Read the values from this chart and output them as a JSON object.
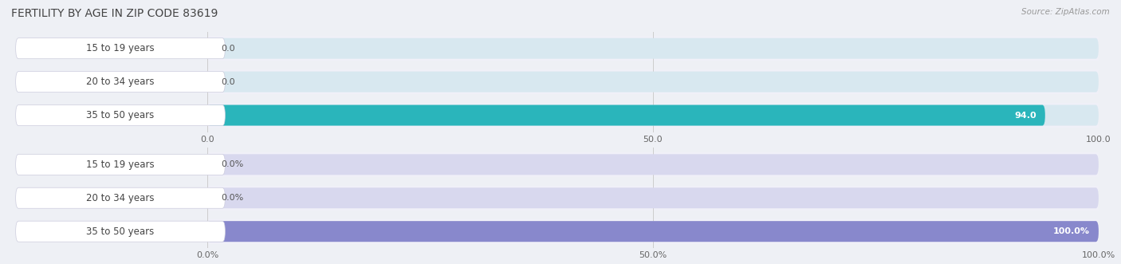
{
  "title": "FERTILITY BY AGE IN ZIP CODE 83619",
  "source": "Source: ZipAtlas.com",
  "background_color": "#eef0f5",
  "row_bg_color": "#f0f0f8",
  "top_chart": {
    "categories": [
      "15 to 19 years",
      "20 to 34 years",
      "35 to 50 years"
    ],
    "values": [
      0.0,
      0.0,
      94.0
    ],
    "xlim": [
      0,
      100
    ],
    "xticks": [
      0.0,
      50.0,
      100.0
    ],
    "xtick_labels": [
      "0.0",
      "50.0",
      "100.0"
    ],
    "bar_bg_color": "#d8e8f0",
    "bar_color": "#2ab5bb",
    "label_bg": "#ffffff",
    "label_text_color": "#444444",
    "value_inside_color": "#ffffff",
    "value_outside_color": "#555555"
  },
  "bottom_chart": {
    "categories": [
      "15 to 19 years",
      "20 to 34 years",
      "35 to 50 years"
    ],
    "values": [
      0.0,
      0.0,
      100.0
    ],
    "xlim": [
      0,
      100
    ],
    "xticks": [
      0.0,
      50.0,
      100.0
    ],
    "xtick_labels": [
      "0.0%",
      "50.0%",
      "100.0%"
    ],
    "bar_bg_color": "#d8d8ee",
    "bar_color": "#8888cc",
    "label_bg": "#ffffff",
    "label_text_color": "#444444",
    "value_inside_color": "#ffffff",
    "value_outside_color": "#555555"
  }
}
